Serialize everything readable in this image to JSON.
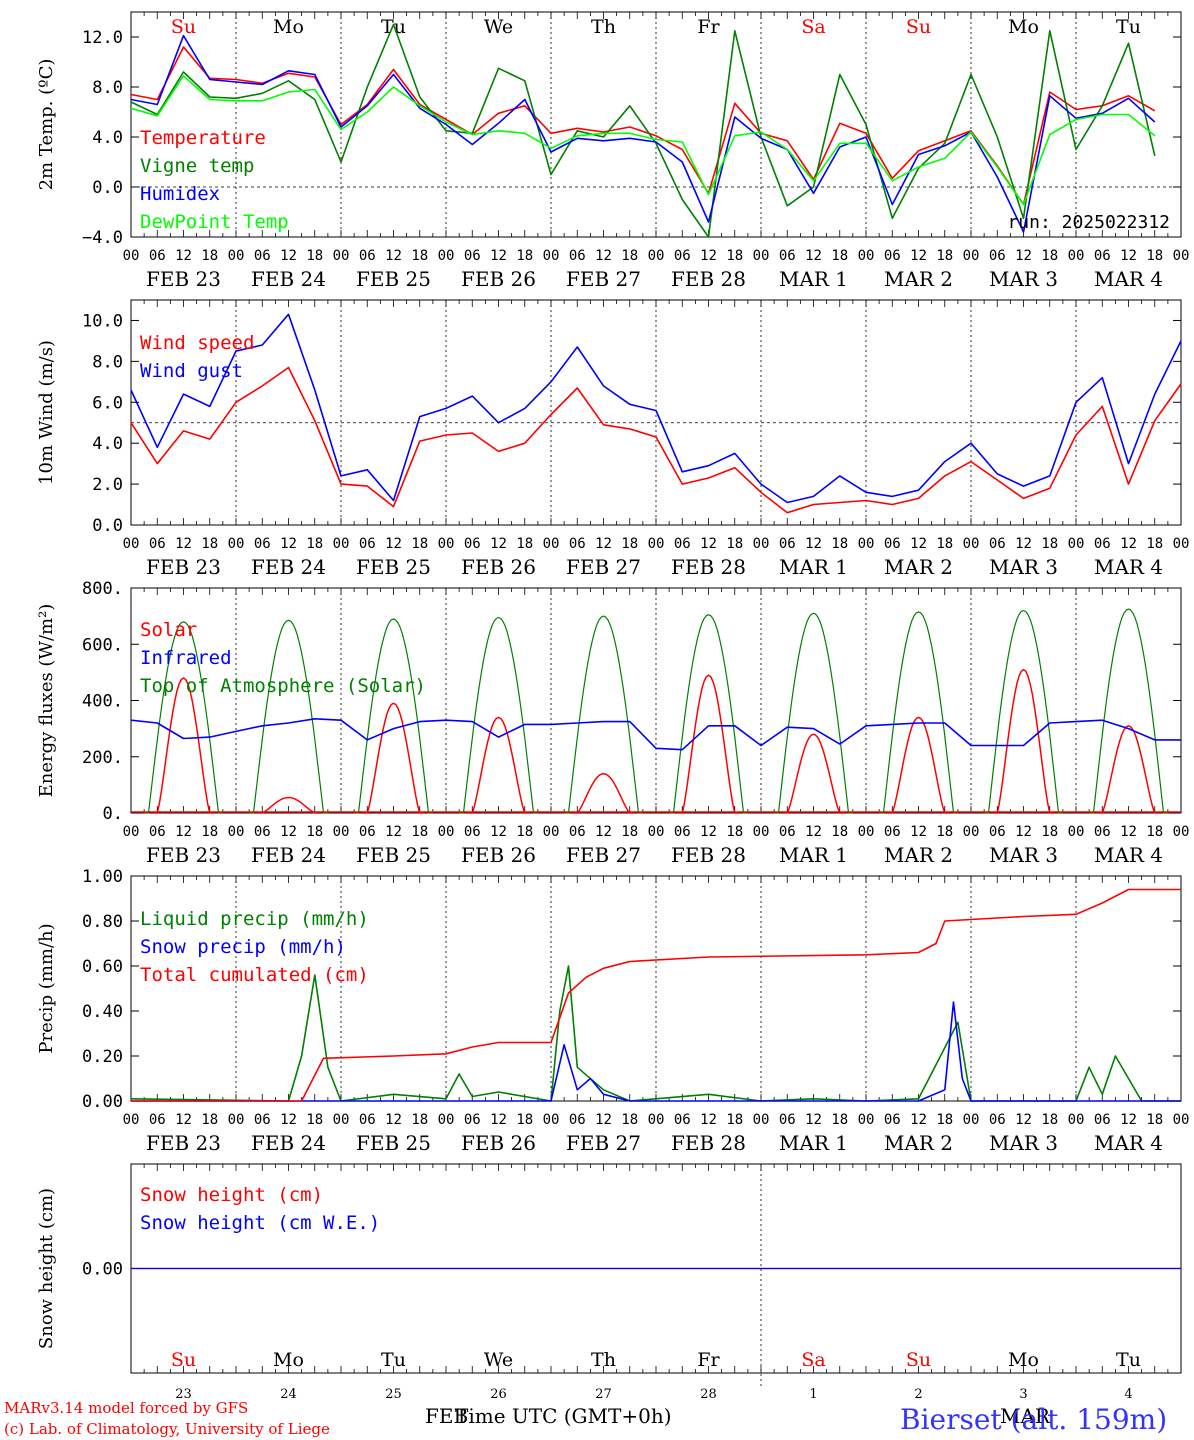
{
  "run_label": "run: 2025022312",
  "hour_ticks": [
    "00",
    "06",
    "12",
    "18"
  ],
  "end_hour": "00",
  "date_labels": [
    "FEB 23",
    "FEB 24",
    "FEB 25",
    "FEB 26",
    "FEB 27",
    "FEB 28",
    "MAR  1",
    "MAR  2",
    "MAR  3",
    "MAR  4"
  ],
  "weekdays": [
    "Su",
    "Mo",
    "Tu",
    "We",
    "Th",
    "Fr",
    "Sa",
    "Su",
    "Mo",
    "Tu"
  ],
  "weekend_flags": [
    true,
    false,
    false,
    false,
    false,
    false,
    true,
    true,
    false,
    false
  ],
  "bottom_days": [
    "23",
    "24",
    "25",
    "26",
    "27",
    "28",
    "1",
    "2",
    "3",
    "4"
  ],
  "bottom_month_left": "FEB",
  "bottom_month_right": "MAR",
  "xaxis_title": "Time UTC (GMT+0h)",
  "credit_line1": "MARv3.14 model forced by GFS",
  "credit_line2": "(c) Lab. of Climatology, University of Liege",
  "station": "Bierset (alt. 159m)",
  "colors": {
    "red": "#ff0000",
    "green": "#008000",
    "blue": "#0000ff",
    "lightgreen": "#00ff00",
    "weekend": "#ff0000",
    "station": "#3333ff"
  },
  "chart_data": [
    {
      "type": "line",
      "ylabel": "2m Temp. (ºC)",
      "ylim": [
        -4,
        14
      ],
      "yticks": [
        -4,
        0,
        4,
        8,
        12
      ],
      "ytick_labels": [
        "−4.0",
        "0.0",
        "4.0",
        "8.0",
        "12.0"
      ],
      "dashed_h": 0,
      "show_weekdays": true,
      "show_run": true,
      "x": [
        0,
        6,
        12,
        18,
        24,
        30,
        36,
        42,
        48,
        54,
        60,
        66,
        72,
        78,
        84,
        90,
        96,
        102,
        108,
        114,
        120,
        126,
        132,
        138,
        144,
        150,
        156,
        162,
        168,
        174,
        180,
        186,
        192,
        198,
        204,
        210,
        216,
        222,
        228,
        234
      ],
      "series": [
        {
          "name": "Temperature",
          "color": "red",
          "values": [
            7.4,
            7.0,
            11.2,
            8.7,
            8.6,
            8.3,
            9.1,
            8.8,
            5.0,
            6.6,
            9.4,
            6.6,
            5.4,
            4.2,
            5.9,
            6.5,
            4.3,
            4.7,
            4.4,
            4.8,
            4.1,
            3.0,
            -0.5,
            6.7,
            4.3,
            3.7,
            0.6,
            5.1,
            4.3,
            0.7,
            2.9,
            3.7,
            4.5,
            1.7,
            -1.4,
            7.6,
            6.2,
            6.5,
            7.3,
            6.1
          ]
        },
        {
          "name": "Vigne temp",
          "color": "green",
          "values": [
            6.8,
            5.8,
            9.2,
            7.2,
            7.1,
            7.5,
            8.5,
            7.0,
            2.0,
            8.0,
            13.0,
            7.2,
            4.5,
            4.3,
            9.5,
            8.5,
            1.0,
            4.5,
            4.0,
            6.5,
            3.5,
            -1.0,
            -4.0,
            12.5,
            4.0,
            -1.5,
            0.0,
            9.0,
            5.0,
            -2.5,
            1.5,
            3.5,
            9.0,
            4.0,
            -2.5,
            12.5,
            3.0,
            6.5,
            11.5,
            2.5
          ]
        },
        {
          "name": "Humidex",
          "color": "blue",
          "values": [
            7.0,
            6.6,
            12.1,
            8.6,
            8.4,
            8.2,
            9.3,
            9.0,
            4.8,
            6.5,
            9.0,
            6.3,
            5.0,
            3.4,
            5.1,
            7.0,
            2.8,
            3.9,
            3.7,
            3.9,
            3.6,
            2.0,
            -2.8,
            5.6,
            3.9,
            3.0,
            -0.5,
            3.2,
            4.0,
            -1.4,
            2.6,
            3.3,
            4.4,
            0.8,
            -3.6,
            7.3,
            5.5,
            5.9,
            7.1,
            5.2
          ]
        },
        {
          "name": "DewPoint Temp",
          "color": "lightgreen",
          "values": [
            6.3,
            5.7,
            8.9,
            7.0,
            6.9,
            6.9,
            7.6,
            7.8,
            4.6,
            6.0,
            8.0,
            6.5,
            5.2,
            4.2,
            4.5,
            4.3,
            3.1,
            4.1,
            4.3,
            4.3,
            3.8,
            3.6,
            -0.6,
            4.1,
            4.4,
            3.0,
            0.5,
            3.5,
            3.5,
            0.5,
            1.6,
            2.3,
            4.4,
            1.6,
            -1.4,
            4.2,
            5.4,
            5.8,
            5.8,
            4.1
          ]
        }
      ]
    },
    {
      "type": "line",
      "ylabel": "10m Wind (m/s)",
      "ylim": [
        0,
        11
      ],
      "yticks": [
        0,
        2,
        4,
        6,
        8,
        10
      ],
      "ytick_labels": [
        "0.0",
        "2.0",
        "4.0",
        "6.0",
        "8.0",
        "10.0"
      ],
      "dashed_h": 5,
      "x": [
        0,
        6,
        12,
        18,
        24,
        30,
        36,
        42,
        48,
        54,
        60,
        66,
        72,
        78,
        84,
        90,
        96,
        102,
        108,
        114,
        120,
        126,
        132,
        138,
        144,
        150,
        156,
        162,
        168,
        174,
        180,
        186,
        192,
        198,
        204,
        210,
        216,
        222,
        228,
        234,
        240
      ],
      "series": [
        {
          "name": "Wind speed",
          "color": "red",
          "values": [
            5.0,
            3.0,
            4.6,
            4.2,
            6.0,
            6.8,
            7.7,
            5.1,
            2.0,
            1.9,
            0.9,
            4.1,
            4.4,
            4.5,
            3.6,
            4.0,
            5.4,
            6.7,
            4.9,
            4.7,
            4.3,
            2.0,
            2.3,
            2.8,
            1.6,
            0.6,
            1.0,
            1.1,
            1.2,
            1.0,
            1.3,
            2.4,
            3.1,
            2.2,
            1.3,
            1.8,
            4.4,
            5.8,
            2.0,
            5.1,
            6.9
          ]
        },
        {
          "name": "Wind gust",
          "color": "blue",
          "values": [
            6.6,
            3.8,
            6.4,
            5.8,
            8.5,
            8.8,
            10.3,
            6.6,
            2.4,
            2.7,
            1.2,
            5.3,
            5.7,
            6.3,
            5.0,
            5.7,
            7.0,
            8.7,
            6.8,
            5.9,
            5.6,
            2.6,
            2.9,
            3.5,
            2.0,
            1.1,
            1.4,
            2.4,
            1.6,
            1.4,
            1.7,
            3.1,
            4.0,
            2.5,
            1.9,
            2.4,
            6.0,
            7.2,
            3.0,
            6.4,
            9.0
          ]
        }
      ]
    },
    {
      "type": "line",
      "ylabel": "Energy fluxes (W/m²)",
      "ylim": [
        0,
        800
      ],
      "yticks": [
        0,
        200,
        400,
        600,
        800
      ],
      "ytick_labels": [
        "0.",
        "200.",
        "400.",
        "600.",
        "800."
      ],
      "dashed_h": null,
      "peaks_toa": [
        680,
        685,
        690,
        695,
        700,
        705,
        710,
        715,
        720,
        725
      ],
      "peaks_solar": [
        480,
        55,
        390,
        340,
        140,
        490,
        280,
        340,
        510,
        310
      ],
      "infrared_values": [
        330,
        320,
        265,
        270,
        290,
        310,
        320,
        335,
        330,
        260,
        300,
        325,
        330,
        325,
        270,
        315,
        315,
        320,
        325,
        325,
        230,
        225,
        310,
        310,
        240,
        305,
        300,
        245,
        310,
        315,
        320,
        320,
        240,
        240,
        240,
        320,
        325,
        330,
        300,
        260,
        260
      ],
      "series": [
        {
          "name": "Solar",
          "color": "red"
        },
        {
          "name": "Infrared",
          "color": "blue"
        },
        {
          "name": "Top of Atmosphere (Solar)",
          "color": "green"
        }
      ]
    },
    {
      "type": "line",
      "ylabel": "Precip (mm/h)",
      "ylim": [
        0,
        1
      ],
      "yticks": [
        0,
        0.2,
        0.4,
        0.6,
        0.8,
        1.0
      ],
      "ytick_labels": [
        "0.00",
        "0.20",
        "0.40",
        "0.60",
        "0.80",
        "1.00"
      ],
      "dashed_h": null,
      "series": [
        {
          "name": "Liquid precip (mm/h)",
          "color": "green",
          "points": [
            [
              0,
              0.01
            ],
            [
              36,
              0
            ],
            [
              39,
              0.2
            ],
            [
              42,
              0.56
            ],
            [
              45,
              0.15
            ],
            [
              48,
              0
            ],
            [
              60,
              0.03
            ],
            [
              72,
              0.01
            ],
            [
              75,
              0.12
            ],
            [
              78,
              0.02
            ],
            [
              84,
              0.04
            ],
            [
              96,
              0
            ],
            [
              98,
              0.4
            ],
            [
              100,
              0.6
            ],
            [
              102,
              0.15
            ],
            [
              108,
              0.05
            ],
            [
              114,
              0
            ],
            [
              132,
              0.03
            ],
            [
              144,
              0
            ],
            [
              156,
              0.01
            ],
            [
              168,
              0
            ],
            [
              180,
              0.01
            ],
            [
              189,
              0.35
            ],
            [
              192,
              0
            ],
            [
              216,
              0
            ],
            [
              219,
              0.15
            ],
            [
              222,
              0.03
            ],
            [
              225,
              0.2
            ],
            [
              228,
              0.1
            ],
            [
              231,
              0
            ],
            [
              240,
              0
            ]
          ]
        },
        {
          "name": "Snow precip (mm/h)",
          "color": "blue",
          "points": [
            [
              0,
              0
            ],
            [
              96,
              0
            ],
            [
              99,
              0.25
            ],
            [
              102,
              0.05
            ],
            [
              105,
              0.1
            ],
            [
              108,
              0.03
            ],
            [
              114,
              0
            ],
            [
              180,
              0
            ],
            [
              186,
              0.05
            ],
            [
              188,
              0.44
            ],
            [
              190,
              0.1
            ],
            [
              192,
              0
            ],
            [
              240,
              0
            ]
          ]
        },
        {
          "name": "Total cumulated (cm)",
          "color": "red",
          "points": [
            [
              0,
              0
            ],
            [
              39,
              0
            ],
            [
              44,
              0.19
            ],
            [
              60,
              0.2
            ],
            [
              72,
              0.21
            ],
            [
              78,
              0.24
            ],
            [
              84,
              0.26
            ],
            [
              96,
              0.26
            ],
            [
              100,
              0.48
            ],
            [
              104,
              0.55
            ],
            [
              108,
              0.59
            ],
            [
              114,
              0.62
            ],
            [
              132,
              0.64
            ],
            [
              168,
              0.65
            ],
            [
              180,
              0.66
            ],
            [
              184,
              0.7
            ],
            [
              186,
              0.8
            ],
            [
              204,
              0.82
            ],
            [
              216,
              0.83
            ],
            [
              222,
              0.88
            ],
            [
              228,
              0.94
            ],
            [
              240,
              0.94
            ]
          ]
        }
      ]
    },
    {
      "type": "line",
      "ylabel": "Snow height (cm)",
      "ylim": [
        -1,
        1
      ],
      "yticks": [
        0
      ],
      "ytick_labels": [
        "0.00"
      ],
      "dashed_h": null,
      "series": [
        {
          "name": "Snow height (cm)",
          "color": "red",
          "values": [
            0,
            0
          ]
        },
        {
          "name": "Snow height (cm W.E.)",
          "color": "blue",
          "values": [
            0,
            0
          ]
        }
      ]
    }
  ]
}
